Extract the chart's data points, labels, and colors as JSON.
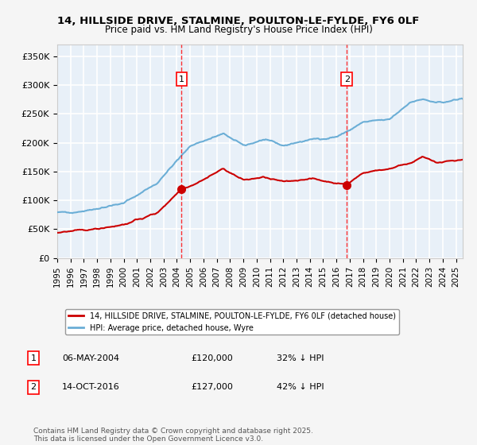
{
  "title_line1": "14, HILLSIDE DRIVE, STALMINE, POULTON-LE-FYLDE, FY6 0LF",
  "title_line2": "Price paid vs. HM Land Registry's House Price Index (HPI)",
  "ylabel_ticks": [
    "£0",
    "£50K",
    "£100K",
    "£150K",
    "£200K",
    "£250K",
    "£300K",
    "£350K"
  ],
  "ytick_values": [
    0,
    50000,
    100000,
    150000,
    200000,
    250000,
    300000,
    350000
  ],
  "ylim": [
    0,
    370000
  ],
  "xlim_start": 1995.0,
  "xlim_end": 2025.5,
  "hpi_color": "#6baed6",
  "price_color": "#cc0000",
  "marker1_date": 2004.35,
  "marker1_price": 120000,
  "marker1_label": "06-MAY-2004",
  "marker1_value": "£120,000",
  "marker1_note": "32% ↓ HPI",
  "marker2_date": 2016.79,
  "marker2_price": 127000,
  "marker2_label": "14-OCT-2016",
  "marker2_value": "£127,000",
  "marker2_note": "42% ↓ HPI",
  "legend_line1": "14, HILLSIDE DRIVE, STALMINE, POULTON-LE-FYLDE, FY6 0LF (detached house)",
  "legend_line2": "HPI: Average price, detached house, Wyre",
  "footnote": "Contains HM Land Registry data © Crown copyright and database right 2025.\nThis data is licensed under the Open Government Licence v3.0.",
  "background_color": "#e8f0f8",
  "grid_color": "#ffffff",
  "xticks": [
    1995,
    1996,
    1997,
    1998,
    1999,
    2000,
    2001,
    2002,
    2003,
    2004,
    2005,
    2006,
    2007,
    2008,
    2009,
    2010,
    2011,
    2012,
    2013,
    2014,
    2015,
    2016,
    2017,
    2018,
    2019,
    2020,
    2021,
    2022,
    2023,
    2024,
    2025
  ]
}
